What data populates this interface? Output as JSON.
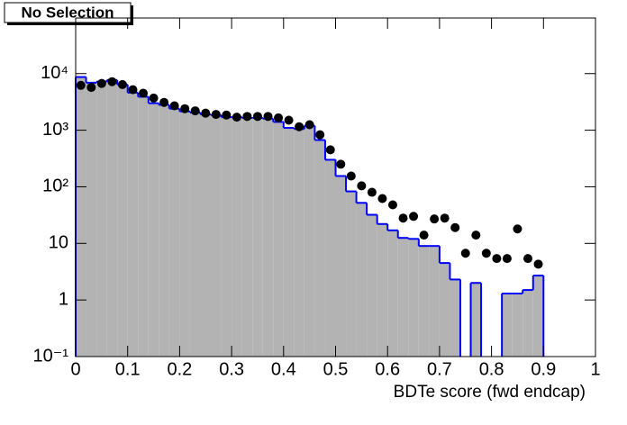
{
  "chart_data": {
    "type": "histogram",
    "title": "No Selection",
    "x_label": "BDTe score (fwd endcap)",
    "bins": [
      0,
      0.02,
      0.04,
      0.06,
      0.08,
      0.1,
      0.12,
      0.14,
      0.16,
      0.18,
      0.2,
      0.22,
      0.24,
      0.26,
      0.28,
      0.3,
      0.32,
      0.34,
      0.36,
      0.38,
      0.4,
      0.42,
      0.44,
      0.46,
      0.48,
      0.5,
      0.52,
      0.54,
      0.56,
      0.58,
      0.6,
      0.62,
      0.64,
      0.66,
      0.68,
      0.7,
      0.72,
      0.74,
      0.76,
      0.78,
      0.8,
      0.82,
      0.84,
      0.86,
      0.88,
      0.9,
      0.92,
      0.94,
      0.96,
      0.98,
      1
    ],
    "series": [
      {
        "style": "filled-step",
        "color": "#0000ff",
        "fill": "#b3b3b3",
        "values": [
          8700,
          6900,
          7200,
          7700,
          6400,
          4600,
          3900,
          3000,
          2800,
          2400,
          2150,
          2050,
          1900,
          1850,
          1700,
          1700,
          1650,
          1650,
          1600,
          1400,
          1100,
          1050,
          1200,
          670,
          300,
          155,
          83,
          52,
          32,
          22,
          17,
          12.5,
          12,
          9,
          9,
          4.5,
          2.3,
          null,
          2,
          null,
          null,
          1.3,
          1.3,
          1.5,
          2.7,
          null,
          null,
          null,
          null,
          null
        ]
      },
      {
        "style": "points",
        "color": "#000000",
        "values": [
          6200,
          5700,
          6700,
          7200,
          6400,
          5200,
          4500,
          3700,
          3100,
          2700,
          2400,
          2200,
          2000,
          1900,
          1850,
          1700,
          1750,
          1750,
          1750,
          1650,
          1500,
          1150,
          1250,
          830,
          450,
          250,
          155,
          104,
          80,
          62,
          48,
          28,
          30,
          14,
          27,
          28,
          19,
          6.7,
          14,
          6.7,
          5.4,
          5.4,
          18,
          5.4,
          4.3,
          null,
          null,
          null,
          null,
          null
        ]
      }
    ],
    "xlim": [
      0,
      1
    ],
    "xticks": [
      0,
      0.1,
      0.2,
      0.3,
      0.4,
      0.5,
      0.6,
      0.7,
      0.8,
      0.9,
      1
    ],
    "ylim": [
      0.1,
      96000
    ],
    "log_y": true,
    "yticks": [
      {
        "value": 0.1,
        "label": "10⁻¹"
      },
      1,
      10,
      {
        "value": 100,
        "label": "10²"
      },
      {
        "value": 1000,
        "label": "10³"
      },
      {
        "value": 10000,
        "label": "10⁴"
      }
    ]
  }
}
